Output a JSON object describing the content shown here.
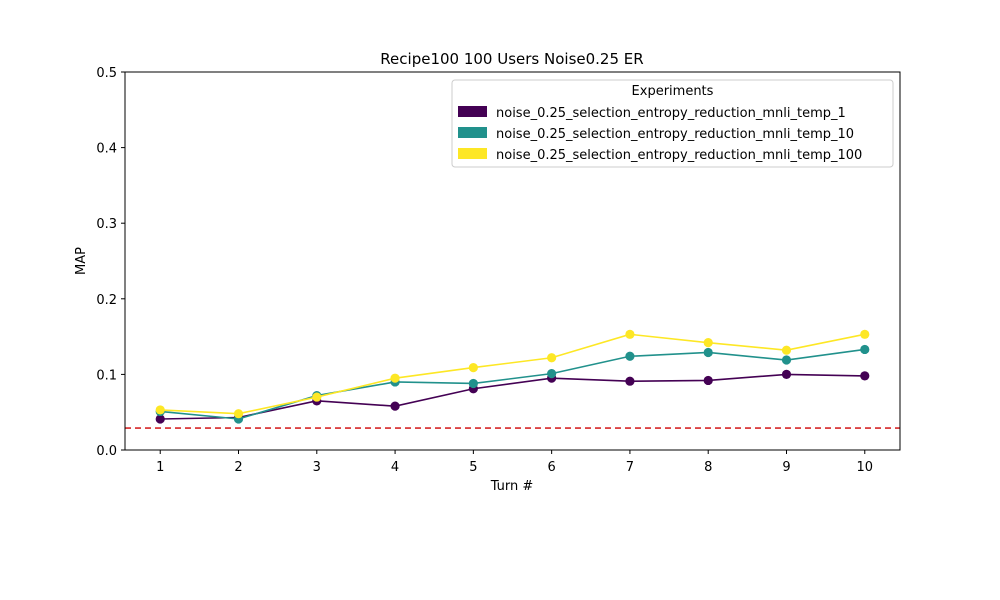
{
  "chart_data": {
    "type": "line",
    "title": "Recipe100 100 Users Noise0.25 ER",
    "xlabel": "Turn #",
    "ylabel": "MAP",
    "x": [
      1,
      2,
      3,
      4,
      5,
      6,
      7,
      8,
      9,
      10
    ],
    "xlim": [
      0.55,
      10.45
    ],
    "ylim": [
      0,
      0.5
    ],
    "yticks": [
      "0.0",
      "0.1",
      "0.2",
      "0.3",
      "0.4",
      "0.5"
    ],
    "xticks": [
      "1",
      "2",
      "3",
      "4",
      "5",
      "6",
      "7",
      "8",
      "9",
      "10"
    ],
    "grid": false,
    "legend": {
      "title": "Experiments",
      "placement": "top-right"
    },
    "series": [
      {
        "name": "noise_0.25_selection_entropy_reduction_mnli_temp_1",
        "color": "#440154",
        "values": [
          0.041,
          0.043,
          0.065,
          0.058,
          0.081,
          0.095,
          0.091,
          0.092,
          0.1,
          0.098
        ]
      },
      {
        "name": "noise_0.25_selection_entropy_reduction_mnli_temp_10",
        "color": "#21918c",
        "values": [
          0.051,
          0.041,
          0.072,
          0.09,
          0.088,
          0.101,
          0.124,
          0.129,
          0.119,
          0.133
        ]
      },
      {
        "name": "noise_0.25_selection_entropy_reduction_mnli_temp_100",
        "color": "#fde725",
        "values": [
          0.053,
          0.048,
          0.07,
          0.095,
          0.109,
          0.122,
          0.153,
          0.142,
          0.132,
          0.153
        ]
      }
    ],
    "reference_line": {
      "value": 0.029,
      "color": "#d62728",
      "style": "dashed"
    }
  }
}
